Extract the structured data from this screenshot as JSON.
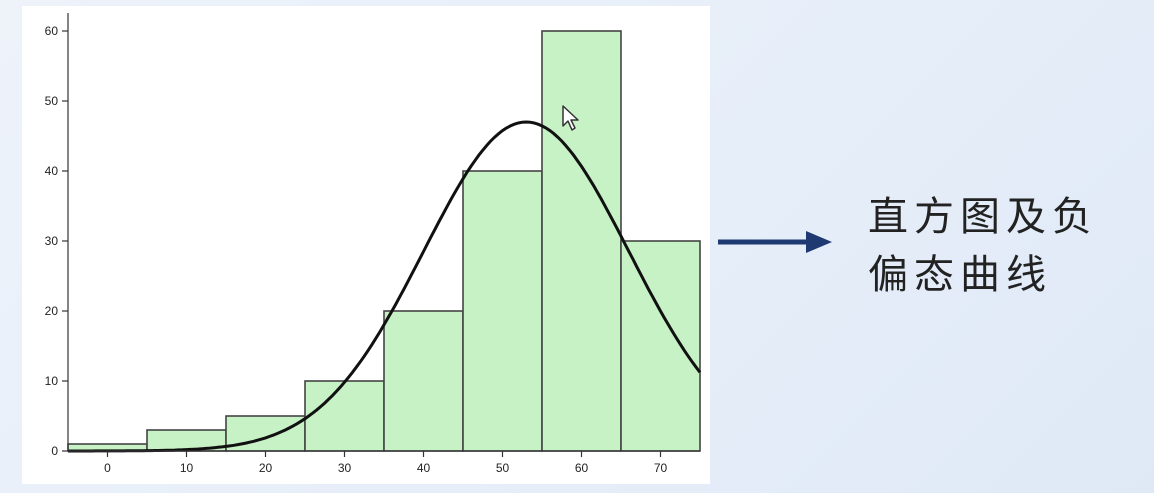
{
  "caption": {
    "line1": "直方图及负",
    "line2": "偏态曲线"
  },
  "colors": {
    "bar_fill": "#c6f2c6",
    "bar_stroke": "#444444",
    "curve": "#111111",
    "arrow": "#1f3a73"
  },
  "chart_data": {
    "type": "bar",
    "categories": [
      "0",
      "10",
      "20",
      "30",
      "40",
      "50",
      "60",
      "70"
    ],
    "values": [
      1,
      3,
      5,
      10,
      20,
      40,
      60,
      30
    ],
    "x_ticks": [
      0,
      10,
      20,
      30,
      40,
      50,
      60,
      70
    ],
    "y_ticks": [
      0,
      10,
      20,
      30,
      40,
      50,
      60
    ],
    "xlim": [
      -5,
      75
    ],
    "ylim": [
      0,
      60
    ],
    "bin_width": 10,
    "title": "",
    "xlabel": "",
    "ylabel": "",
    "grid": false,
    "curve": {
      "type": "normal-density overlay",
      "peak_x": 53,
      "peak_y": 47,
      "sd": 13
    }
  }
}
